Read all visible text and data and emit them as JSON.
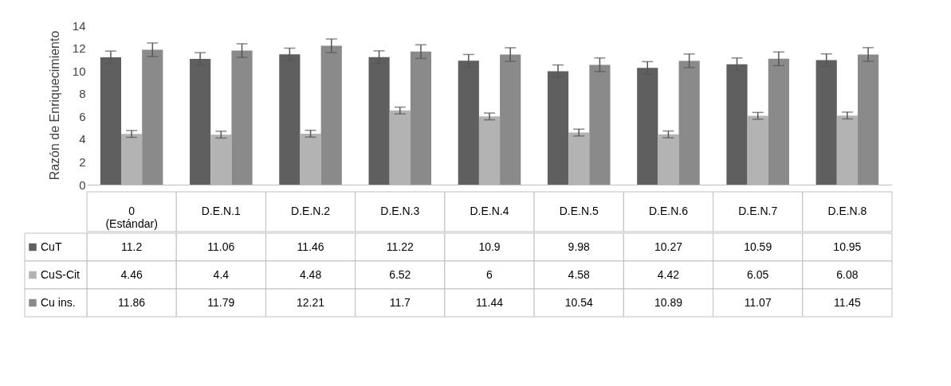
{
  "chart_data": {
    "type": "bar",
    "ylabel": "Razón de Enriquecimiento",
    "categories": [
      "0 (Estándar)",
      "D.E.N.1",
      "D.E.N.2",
      "D.E.N.3",
      "D.E.N.4",
      "D.E.N.5",
      "D.E.N.6",
      "D.E.N.7",
      "D.E.N.8"
    ],
    "series": [
      {
        "name": "CuT",
        "color": "#5f5f5f",
        "values": [
          11.2,
          11.06,
          11.46,
          11.22,
          10.9,
          9.98,
          10.27,
          10.59,
          10.95
        ],
        "errors": [
          0.55,
          0.55,
          0.55,
          0.55,
          0.55,
          0.55,
          0.55,
          0.55,
          0.55
        ]
      },
      {
        "name": "CuS-Cit",
        "color": "#b3b3b3",
        "values": [
          4.46,
          4.4,
          4.48,
          6.52,
          6,
          4.58,
          4.42,
          6.05,
          6.08
        ],
        "errors": [
          0.3,
          0.3,
          0.3,
          0.3,
          0.3,
          0.3,
          0.3,
          0.3,
          0.3
        ]
      },
      {
        "name": "Cu ins.",
        "color": "#8a8a8a",
        "values": [
          11.86,
          11.79,
          12.21,
          11.7,
          11.44,
          10.54,
          10.89,
          11.07,
          11.45
        ],
        "errors": [
          0.6,
          0.6,
          0.6,
          0.6,
          0.6,
          0.6,
          0.6,
          0.6,
          0.6
        ]
      }
    ],
    "ylim": [
      0,
      14
    ],
    "yticks": [
      0,
      2,
      4,
      6,
      8,
      10,
      12,
      14
    ],
    "grid": false,
    "legend": "bottom",
    "data_labels": true
  }
}
